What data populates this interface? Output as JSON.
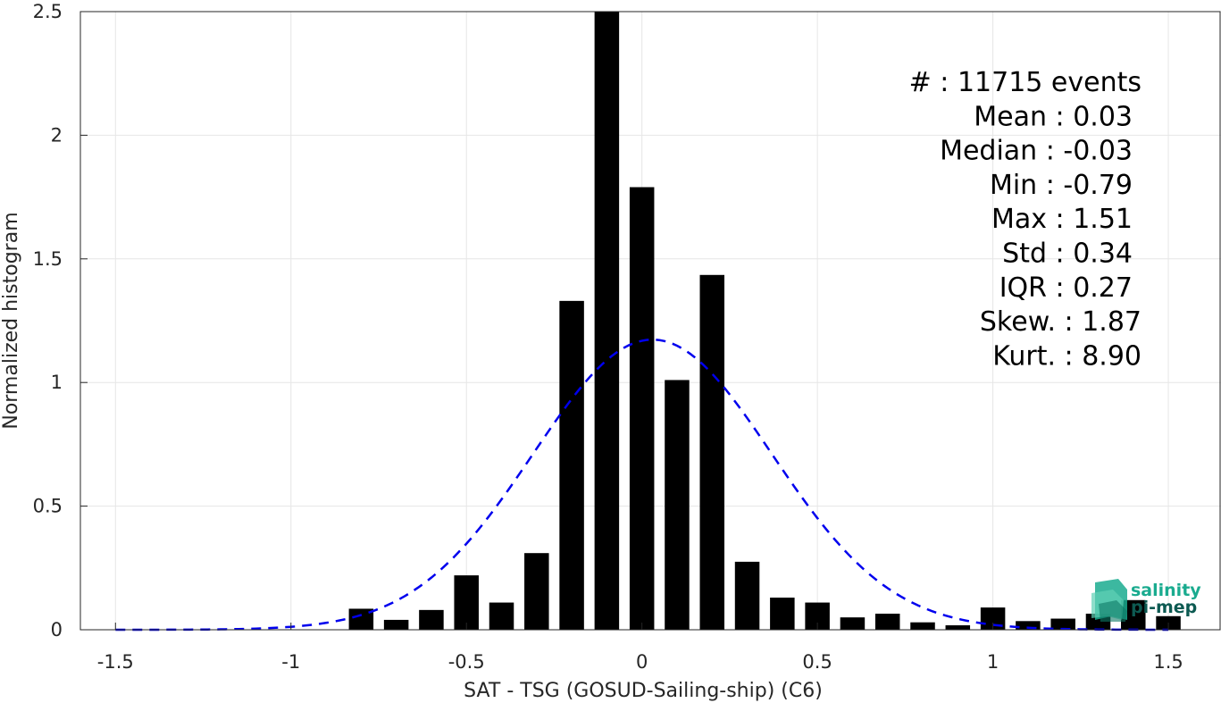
{
  "chart_data": {
    "type": "bar",
    "xlabel": "SAT - TSG (GOSUD-Sailing-ship) (C6)",
    "ylabel": "Normalized histogram",
    "xlim": [
      -1.6,
      1.65
    ],
    "ylim": [
      0,
      2.5
    ],
    "xticks": [
      -1.5,
      -1,
      -0.5,
      0,
      0.5,
      1,
      1.5
    ],
    "xtick_labels": [
      "-1.5",
      "-1",
      "-0.5",
      "0",
      "0.5",
      "1",
      "1.5"
    ],
    "yticks": [
      0,
      0.5,
      1,
      1.5,
      2,
      2.5
    ],
    "ytick_labels": [
      "0",
      "0.5",
      "1",
      "1.5",
      "2",
      "2.5"
    ],
    "grid": true,
    "bar_color": "#000000",
    "bar_width": 0.07,
    "x": [
      -0.8,
      -0.7,
      -0.6,
      -0.5,
      -0.4,
      -0.3,
      -0.2,
      -0.1,
      0.0,
      0.1,
      0.2,
      0.3,
      0.4,
      0.5,
      0.6,
      0.7,
      0.8,
      0.9,
      1.0,
      1.1,
      1.2,
      1.3,
      1.4,
      1.5
    ],
    "values": [
      0.085,
      0.04,
      0.08,
      0.22,
      0.11,
      0.31,
      1.33,
      2.5,
      1.79,
      1.01,
      1.435,
      0.275,
      0.13,
      0.11,
      0.05,
      0.065,
      0.03,
      0.018,
      0.09,
      0.035,
      0.045,
      0.065,
      0.12,
      0.055
    ],
    "fit_curve": {
      "style": "dashed",
      "color": "#0000ee",
      "mean": 0.03,
      "std": 0.34,
      "x_range": [
        -1.5,
        1.5
      ]
    },
    "annotations": [
      "#  : 11715 events",
      "Mean : 0.03",
      "Median : -0.03",
      "Min : -0.79",
      "Max : 1.51",
      "Std : 0.34",
      "IQR : 0.27",
      "Skew. : 1.87",
      "Kurt. : 8.90"
    ]
  },
  "logo": {
    "line1": "salinity",
    "line2": "pi-mep",
    "color_primary": "#1aab8f",
    "color_secondary": "#0d5a52"
  }
}
